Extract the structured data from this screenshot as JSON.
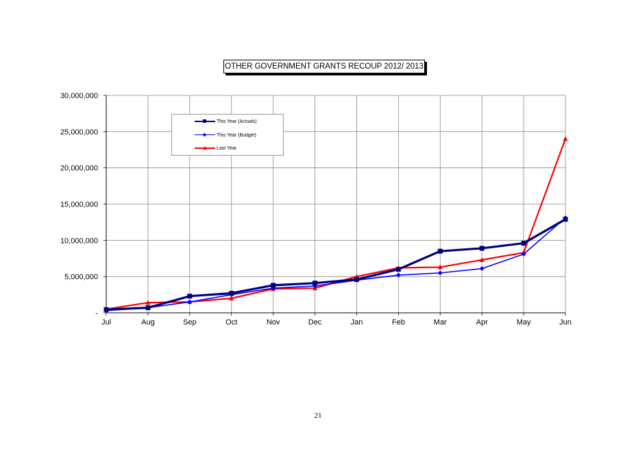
{
  "page": {
    "number": "21"
  },
  "chart_data": {
    "type": "line",
    "title": "OTHER GOVERNMENT GRANTS  RECOUP 2012/ 2013",
    "categories": [
      "Jul",
      "Aug",
      "Sep",
      "Oct",
      "Nov",
      "Dec",
      "Jan",
      "Feb",
      "Mar",
      "Apr",
      "May",
      "Jun"
    ],
    "ylim": [
      0,
      30000000
    ],
    "yticks": [
      0,
      5000000,
      10000000,
      15000000,
      20000000,
      25000000,
      30000000
    ],
    "ytick_labels": [
      "-",
      "5,000,000",
      "10,000,000",
      "15,000,000",
      "20,000,000",
      "25,000,000",
      "30,000,000"
    ],
    "grid": true,
    "legend_position": "top-left",
    "series": [
      {
        "name": "This Year  (Actuals)",
        "color": "#000080",
        "marker": "square",
        "values": [
          450000,
          700000,
          2300000,
          2700000,
          3800000,
          4100000,
          4600000,
          6000000,
          8500000,
          8900000,
          9600000,
          12900000
        ]
      },
      {
        "name": "This Year  (Budget)",
        "color": "#0000ff",
        "marker": "diamond",
        "values": [
          300000,
          700000,
          1500000,
          2500000,
          3400000,
          3700000,
          4500000,
          5200000,
          5500000,
          6100000,
          8100000,
          13100000
        ]
      },
      {
        "name": "Last Year",
        "color": "#ff0000",
        "marker": "triangle",
        "values": [
          500000,
          1400000,
          1500000,
          2000000,
          3300000,
          3400000,
          5000000,
          6200000,
          6300000,
          7300000,
          8300000,
          24000000
        ]
      }
    ]
  }
}
